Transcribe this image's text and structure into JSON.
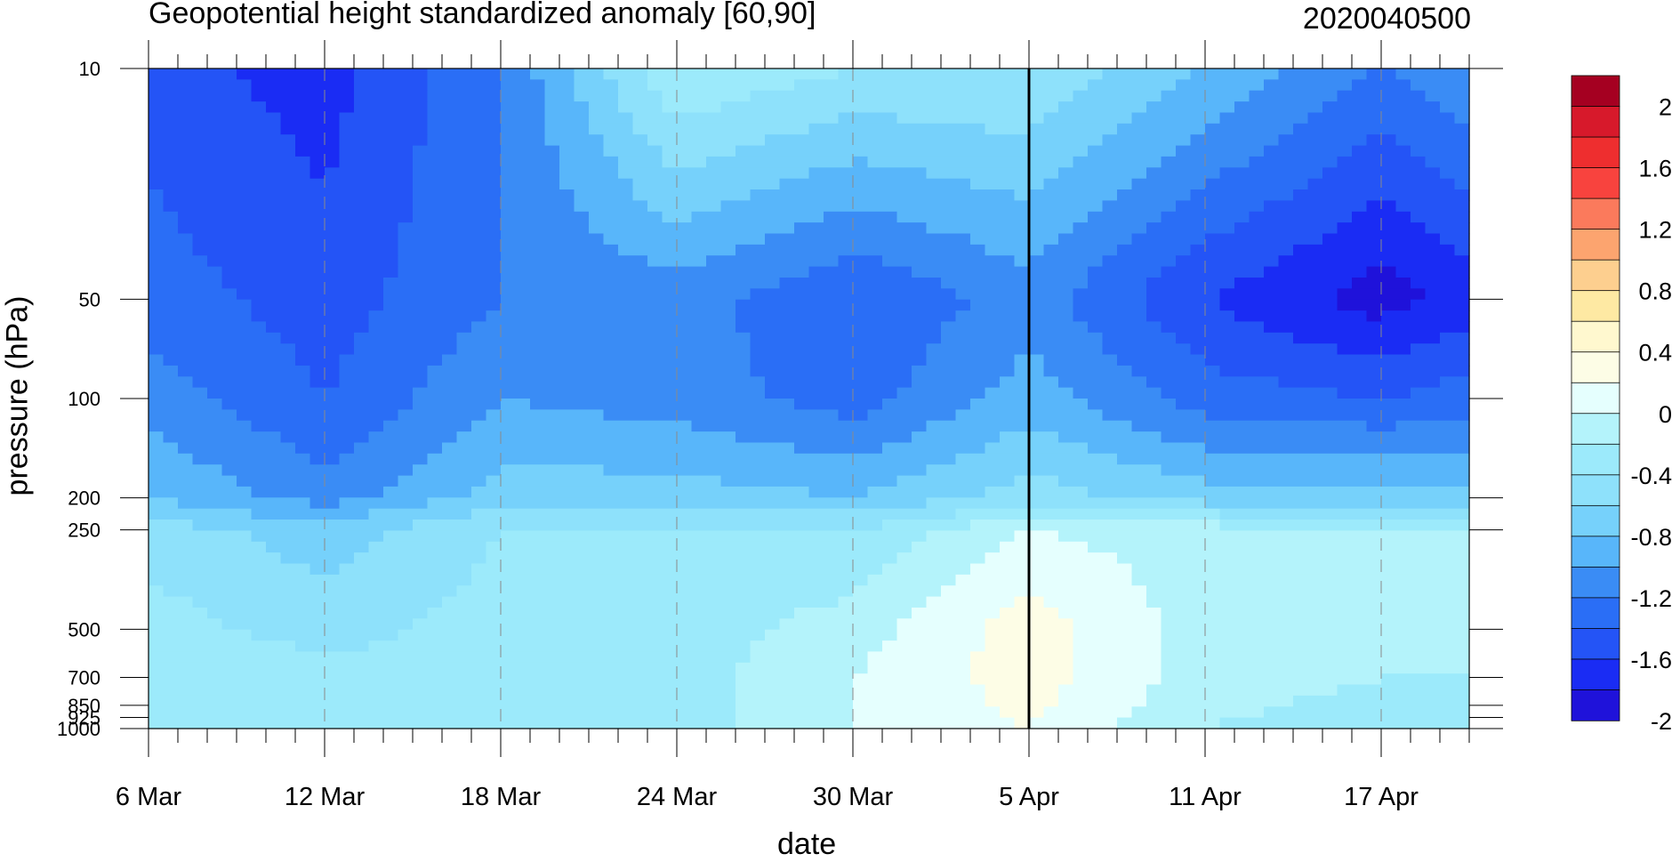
{
  "title": "Geopotential height standardized anomaly [60,90]",
  "timestamp": "2020040500",
  "chart_data": {
    "type": "heatmap",
    "title": "Geopotential height standardized anomaly [60,90]",
    "xlabel": "date",
    "ylabel": "pressure (hPa)",
    "x_ticks": [
      "6 Mar",
      "12 Mar",
      "18 Mar",
      "24 Mar",
      "30 Mar",
      "5 Apr",
      "11 Apr",
      "17 Apr"
    ],
    "x_tick_days": [
      0,
      6,
      12,
      18,
      24,
      30,
      36,
      42
    ],
    "x_range_days": [
      0,
      45
    ],
    "y_ticks": [
      "10",
      "50",
      "100",
      "200",
      "250",
      "500",
      "700",
      "850",
      "925",
      "1000"
    ],
    "y_tick_values": [
      10,
      50,
      100,
      200,
      250,
      500,
      700,
      850,
      925,
      1000
    ],
    "y_scale": "log",
    "y_range": [
      1000,
      10
    ],
    "marker_day": 30,
    "marker_label": "5 Apr",
    "colorbar": {
      "levels": [
        "2",
        "1.6",
        "1.2",
        "0.8",
        "0.4",
        "0",
        "-0.4",
        "-0.8",
        "-1.2",
        "-1.6",
        "-2"
      ],
      "colors": [
        "#a50021",
        "#d7192b",
        "#ee2e2f",
        "#f8433e",
        "#fb7a5c",
        "#fca46f",
        "#fdcf8f",
        "#fee9a3",
        "#fff8cf",
        "#fdfde6",
        "#e5fffe",
        "#b4f3fb",
        "#9ceafb",
        "#8ee1fb",
        "#76d1fb",
        "#58b6fa",
        "#3a8cf5",
        "#2a6ef6",
        "#2454f6",
        "#1a2cf4",
        "#1f12da"
      ]
    },
    "profiles": [
      {
        "day": 0,
        "values": {
          "10": -1.7,
          "50": -1.5,
          "100": -1.3,
          "200": -1.0,
          "250": -0.7,
          "500": -0.5,
          "700": -0.4,
          "1000": -0.4
        }
      },
      {
        "day": 6,
        "values": {
          "10": -1.9,
          "50": -1.7,
          "100": -1.6,
          "200": -1.3,
          "250": -0.9,
          "500": -0.7,
          "700": -0.5,
          "1000": -0.4
        }
      },
      {
        "day": 12,
        "values": {
          "10": -1.4,
          "50": -1.4,
          "100": -1.2,
          "200": -0.9,
          "250": -0.6,
          "500": -0.5,
          "700": -0.5,
          "1000": -0.4
        }
      },
      {
        "day": 18,
        "values": {
          "10": -0.4,
          "50": -1.3,
          "100": -1.3,
          "200": -0.9,
          "250": -0.6,
          "500": -0.5,
          "700": -0.5,
          "1000": -0.5
        }
      },
      {
        "day": 24,
        "values": {
          "10": -0.6,
          "50": -1.6,
          "100": -1.5,
          "200": -1.0,
          "250": -0.6,
          "500": -0.3,
          "700": -0.2,
          "1000": -0.2
        }
      },
      {
        "day": 30,
        "values": {
          "10": -0.6,
          "50": -1.3,
          "100": -1.1,
          "200": -0.7,
          "250": -0.2,
          "500": 0.1,
          "700": 0.1,
          "1000": 0.0
        }
      },
      {
        "day": 36,
        "values": {
          "10": -1.0,
          "50": -1.8,
          "100": -1.5,
          "200": -0.9,
          "250": -0.3,
          "500": -0.3,
          "700": -0.3,
          "1000": -0.4
        }
      },
      {
        "day": 42,
        "values": {
          "10": -1.4,
          "50": -2.1,
          "100": -1.6,
          "200": -0.9,
          "250": -0.4,
          "500": -0.3,
          "700": -0.4,
          "1000": -0.5
        }
      },
      {
        "day": 45,
        "values": {
          "10": -1.2,
          "50": -1.9,
          "100": -1.5,
          "200": -0.9,
          "250": -0.4,
          "500": -0.3,
          "700": -0.4,
          "1000": -0.5
        }
      }
    ]
  }
}
